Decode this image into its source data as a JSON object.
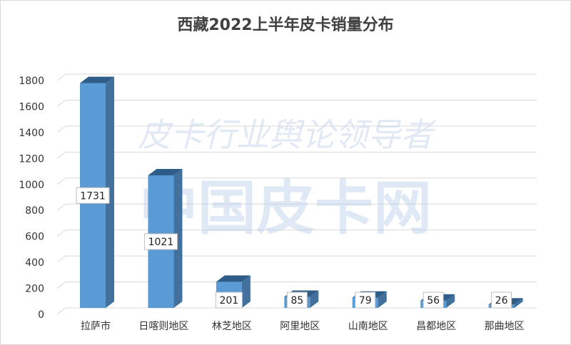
{
  "chart_data": {
    "type": "bar",
    "title": "西藏2022上半年皮卡销量分布",
    "categories": [
      "拉萨市",
      "日喀则地区",
      "林芝地区",
      "阿里地区",
      "山南地区",
      "昌都地区",
      "那曲地区"
    ],
    "values": [
      1731,
      1021,
      201,
      85,
      79,
      56,
      26
    ],
    "ylim": [
      0,
      1800
    ],
    "yticks": [
      0,
      200,
      400,
      600,
      800,
      1000,
      1200,
      1400,
      1600,
      1800
    ],
    "grid": true,
    "legend": "none",
    "style": "3d-column",
    "colors": {
      "front": "#5b9bd5",
      "side": "#41719c",
      "top": "#2e5d8a",
      "grid": "#d9d9d9"
    }
  },
  "watermark": {
    "line1": "皮卡行业舆论领导者",
    "line2": "中国皮卡网"
  }
}
